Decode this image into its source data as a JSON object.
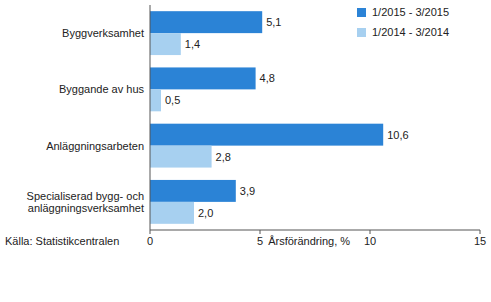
{
  "chart_data": {
    "type": "bar",
    "orientation": "horizontal",
    "categories": [
      "Byggverksamhet",
      "Byggande av hus",
      "Anläggningsarbeten",
      "Specialiserad bygg- och anläggningsverksamhet"
    ],
    "series": [
      {
        "name": "1/2015 - 3/2015",
        "color": "#2b83d6",
        "values": [
          5.1,
          4.8,
          10.6,
          3.9
        ],
        "value_labels": [
          "5,1",
          "4,8",
          "10,6",
          "3,9"
        ]
      },
      {
        "name": "1/2014 - 3/2014",
        "color": "#a7d0f0",
        "values": [
          1.4,
          0.5,
          2.8,
          2.0
        ],
        "value_labels": [
          "1,4",
          "0,5",
          "2,8",
          "2,0"
        ]
      }
    ],
    "xlabel": "Årsförändring, %",
    "source": "Källa: Statistikcentralen",
    "xlim": [
      0,
      15
    ],
    "xticks": [
      0,
      5,
      10,
      15
    ],
    "grid": false,
    "legend": "top-right",
    "data_labels": true
  }
}
